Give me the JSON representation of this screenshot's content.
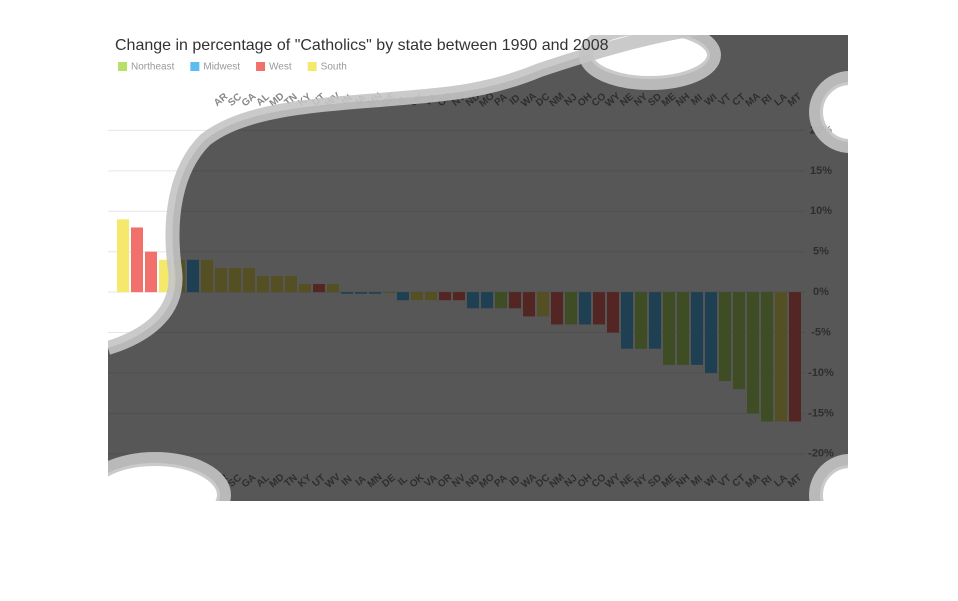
{
  "chart_data": {
    "type": "bar",
    "title": "Change in percentage of \"Catholics\" by state between 1990 and 2008",
    "legend": [
      {
        "name": "Northeast",
        "color": "#b5e06a"
      },
      {
        "name": "Midwest",
        "color": "#5bbcf0"
      },
      {
        "name": "West",
        "color": "#f2706b"
      },
      {
        "name": "South",
        "color": "#f5e96b"
      }
    ],
    "categories": [
      null,
      null,
      null,
      null,
      null,
      null,
      null,
      "AR",
      "SC",
      "GA",
      "AL",
      "MD",
      "TN",
      "KY",
      "UT",
      "WV",
      "IN",
      "IA",
      "MN",
      "DE",
      "IL",
      "OK",
      "VA",
      "OR",
      "NV",
      "ND",
      "MO",
      "PA",
      "ID",
      "WA",
      "DC",
      "NM",
      "NJ",
      "OH",
      "CO",
      "WY",
      "NE",
      "NY",
      "SD",
      "ME",
      "NH",
      "MI",
      "WI",
      "VT",
      "CT",
      "MA",
      "RI",
      "LA",
      "MT"
    ],
    "values": [
      9,
      8,
      5,
      4,
      4,
      4,
      4,
      3,
      3,
      3,
      2,
      2,
      2,
      1,
      1,
      1,
      -0.2,
      -0.2,
      -0.2,
      -0.1,
      -1,
      -1,
      -1,
      -1,
      -1,
      -2,
      -2,
      -2,
      -2,
      -3,
      -3,
      -4,
      -4,
      -4,
      -4,
      -5,
      -7,
      -7,
      -7,
      -9,
      -9,
      -9,
      -10,
      -11,
      -12,
      -15,
      -16,
      -16,
      -16
    ],
    "colors": [
      "#f5e96b",
      "#f2706b",
      "#f2706b",
      "#f5e96b",
      "#f5e96b",
      "#5bbcf0",
      "#f5e96b",
      "#f5e96b",
      "#f5e96b",
      "#f5e96b",
      "#f5e96b",
      "#f5e96b",
      "#f5e96b",
      "#f5e96b",
      "#f2706b",
      "#f5e96b",
      "#5bbcf0",
      "#5bbcf0",
      "#5bbcf0",
      "#f5e96b",
      "#5bbcf0",
      "#f5e96b",
      "#f5e96b",
      "#f2706b",
      "#f2706b",
      "#5bbcf0",
      "#5bbcf0",
      "#b5e06a",
      "#f2706b",
      "#f2706b",
      "#f5e96b",
      "#f2706b",
      "#b5e06a",
      "#5bbcf0",
      "#f2706b",
      "#f2706b",
      "#5bbcf0",
      "#b5e06a",
      "#5bbcf0",
      "#b5e06a",
      "#b5e06a",
      "#5bbcf0",
      "#5bbcf0",
      "#b5e06a",
      "#b5e06a",
      "#b5e06a",
      "#b5e06a",
      "#f5e96b",
      "#f2706b"
    ],
    "ylim": [
      -22,
      25
    ],
    "yticks": [
      {
        "value": 20,
        "label": "20%"
      },
      {
        "value": 15,
        "label": "15%"
      },
      {
        "value": 10,
        "label": "10%"
      },
      {
        "value": 5,
        "label": "5%"
      },
      {
        "value": 0,
        "label": "0%"
      },
      {
        "value": -5,
        "label": "-5%"
      },
      {
        "value": -10,
        "label": "-10%"
      },
      {
        "value": -15,
        "label": "-15%"
      },
      {
        "value": -20,
        "label": "-20%"
      }
    ],
    "grid": true
  }
}
